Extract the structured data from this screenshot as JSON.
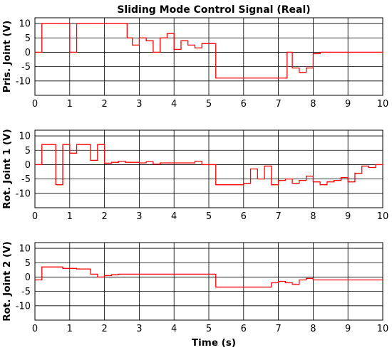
{
  "colors": {
    "signal": "#ff0000",
    "axes": "#000000",
    "background": "#ffffff"
  },
  "chart_data": [
    {
      "type": "line",
      "title": "Sliding Mode Control Signal (Real)",
      "ylabel": "Pris. Joint (V)",
      "xlabel": "",
      "xlim": [
        0,
        10
      ],
      "ylim": [
        -15,
        12
      ],
      "xticks": [
        0,
        1,
        2,
        3,
        4,
        5,
        6,
        7,
        8,
        9,
        10
      ],
      "yticks": [
        10,
        5,
        0,
        -5,
        -10
      ],
      "grid": true,
      "step": true,
      "x": [
        0,
        0.2,
        1.0,
        1.2,
        2.65,
        2.8,
        3.0,
        3.2,
        3.4,
        3.6,
        3.8,
        4.0,
        4.2,
        4.4,
        4.6,
        4.8,
        5.2,
        7.25,
        7.4,
        7.6,
        7.8,
        8.0,
        8.2,
        10
      ],
      "series": [
        {
          "values": [
            0,
            10,
            0,
            10,
            5,
            2.5,
            5,
            4,
            0,
            5,
            6.5,
            1,
            4,
            2.5,
            1.5,
            3,
            -9,
            0,
            -5.5,
            -7,
            -5.5,
            -0.5,
            0,
            0
          ]
        }
      ]
    },
    {
      "type": "line",
      "title": "",
      "ylabel": "Rot. Joint 1 (V)",
      "xlabel": "",
      "xlim": [
        0,
        10
      ],
      "ylim": [
        -15,
        12
      ],
      "xticks": [
        0,
        1,
        2,
        3,
        4,
        5,
        6,
        7,
        8,
        9,
        10
      ],
      "yticks": [
        10,
        5,
        0,
        -5,
        -10
      ],
      "grid": true,
      "step": true,
      "x": [
        0,
        0.2,
        0.6,
        0.8,
        1.0,
        1.2,
        1.6,
        1.8,
        2.0,
        2.2,
        2.4,
        2.6,
        3.0,
        3.2,
        3.4,
        3.6,
        4.6,
        4.8,
        5.2,
        6.0,
        6.2,
        6.4,
        6.6,
        6.8,
        7.0,
        7.2,
        7.4,
        7.6,
        7.8,
        8.0,
        8.2,
        8.4,
        8.6,
        8.8,
        9.0,
        9.2,
        9.4,
        9.6,
        9.8,
        10
      ],
      "series": [
        {
          "values": [
            0,
            7,
            -7,
            7,
            4,
            7,
            1.5,
            7,
            0.5,
            0.8,
            1.2,
            0.8,
            0.6,
            1,
            0.2,
            0.6,
            1.2,
            0,
            -7,
            -6.5,
            -1.5,
            -5,
            -0.5,
            -7,
            -5.5,
            -5,
            -6.5,
            -5.5,
            -4,
            -6,
            -7,
            -6,
            -5.5,
            -4.5,
            -6,
            -3,
            -0.5,
            -1,
            0,
            0
          ]
        }
      ]
    },
    {
      "type": "line",
      "title": "",
      "ylabel": "Rot. Joint 2 (V)",
      "xlabel": "Time (s)",
      "xlim": [
        0,
        10
      ],
      "ylim": [
        -15,
        12
      ],
      "xticks": [
        0,
        1,
        2,
        3,
        4,
        5,
        6,
        7,
        8,
        9,
        10
      ],
      "yticks": [
        10,
        5,
        0,
        -5,
        -10
      ],
      "grid": true,
      "step": true,
      "x": [
        0,
        0.2,
        0.8,
        1.2,
        1.6,
        1.8,
        2.0,
        2.2,
        2.4,
        2.6,
        3.0,
        5.2,
        6.8,
        7.0,
        7.2,
        7.4,
        7.6,
        7.8,
        8.0,
        8.2,
        10
      ],
      "series": [
        {
          "values": [
            -1,
            3.5,
            3,
            2.8,
            1,
            0,
            0.5,
            0.8,
            1,
            1,
            1,
            -3.5,
            -2,
            -1.5,
            -2,
            -2.5,
            -1,
            -0.5,
            -1,
            -1,
            -1
          ]
        }
      ]
    }
  ]
}
